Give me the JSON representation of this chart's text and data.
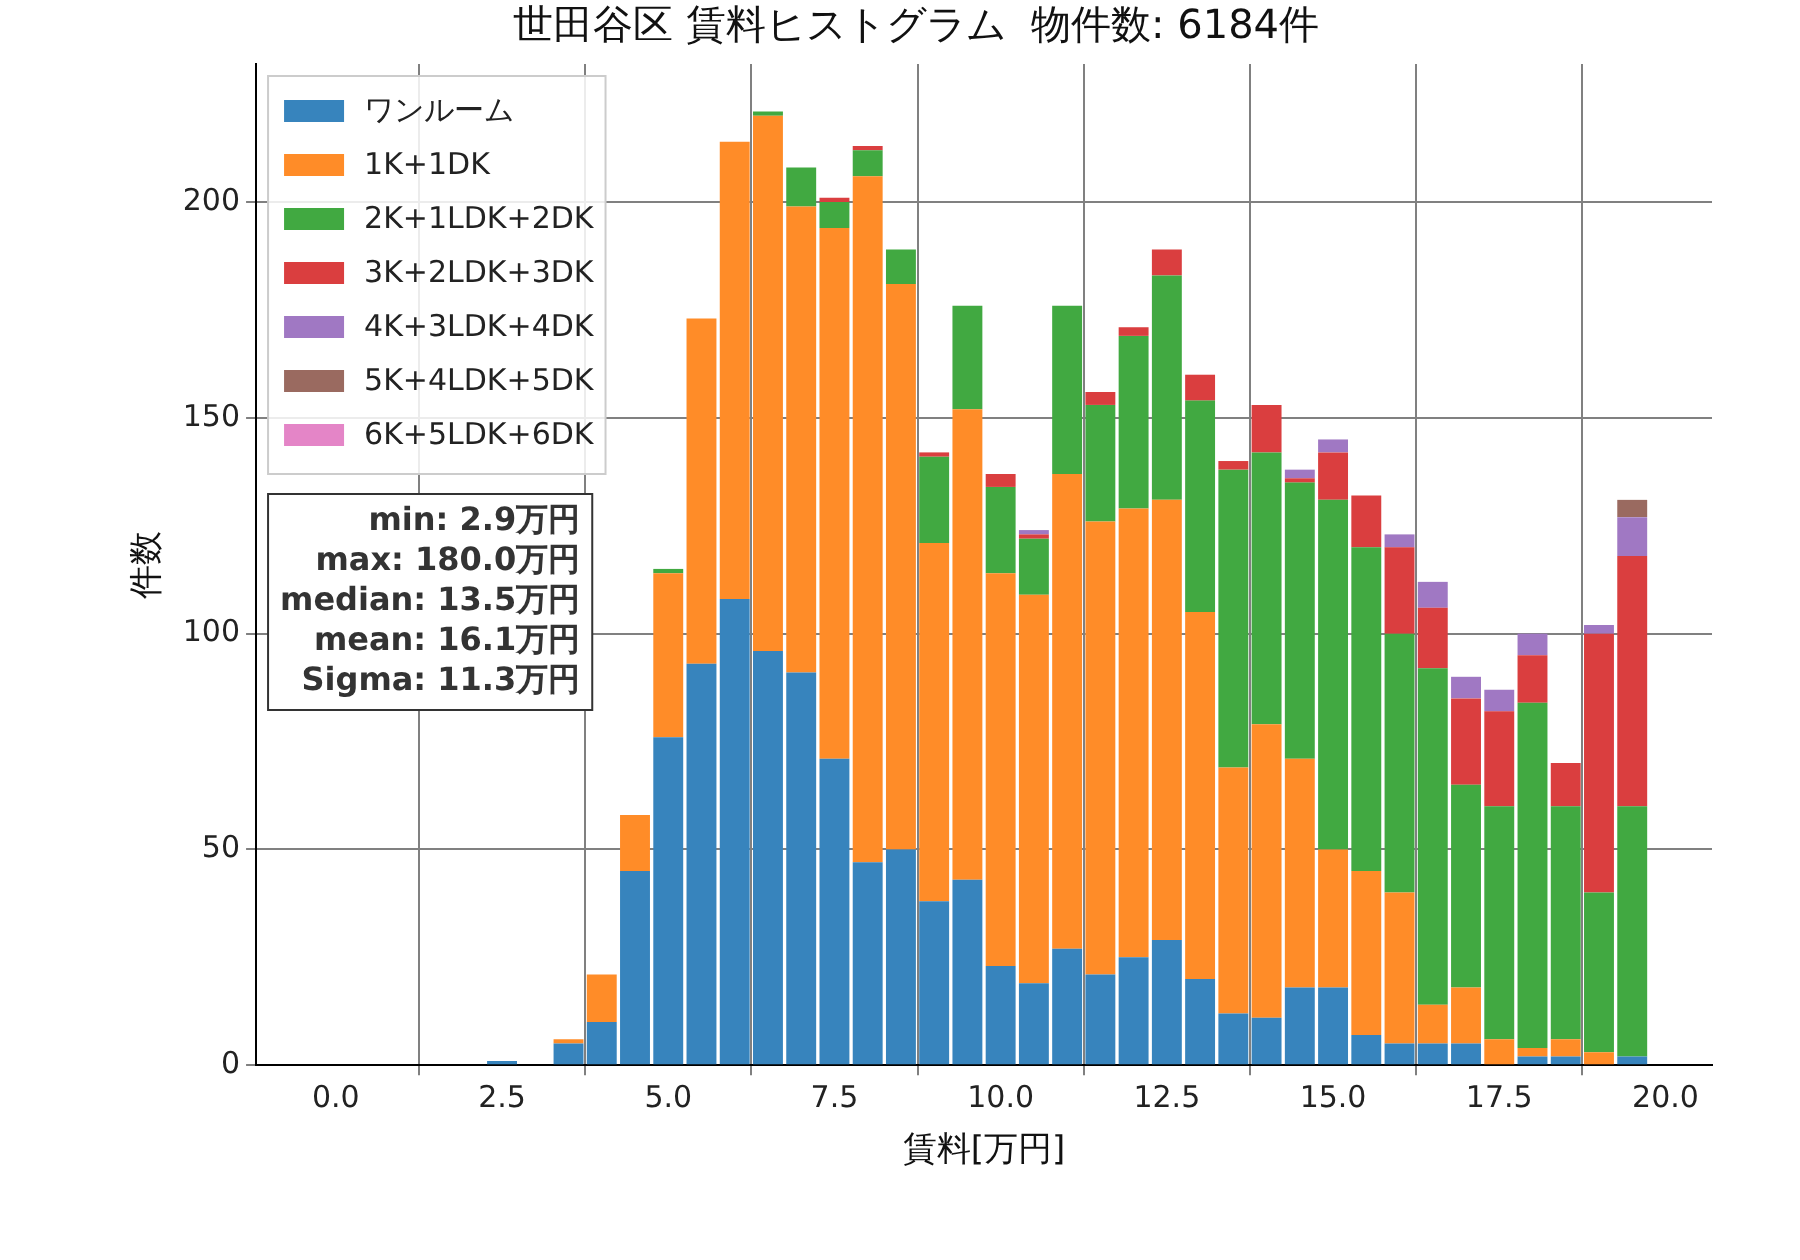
{
  "chart_data": {
    "type": "bar",
    "title": "世田谷区 賃料ヒストグラム  物件数: 6184件",
    "xlabel": "賃料[万円]",
    "ylabel": "件数",
    "x": [
      2.5,
      3.0,
      3.5,
      4.0,
      4.5,
      5.0,
      5.5,
      6.0,
      6.5,
      7.0,
      7.5,
      8.0,
      8.5,
      9.0,
      9.5,
      10.0,
      10.5,
      11.0,
      11.5,
      12.0,
      12.5,
      13.0,
      13.5,
      14.0,
      14.5,
      15.0,
      15.5,
      16.0,
      16.5,
      17.0,
      17.5,
      18.0,
      18.5,
      19.0,
      19.5
    ],
    "stacked": true,
    "series": [
      {
        "name": "ワンルーム",
        "color": "#3784bd",
        "values": [
          1,
          0,
          5,
          10,
          45,
          76,
          93,
          108,
          96,
          91,
          71,
          47,
          50,
          38,
          43,
          23,
          19,
          27,
          21,
          25,
          29,
          20,
          12,
          11,
          18,
          18,
          7,
          5,
          5,
          5,
          0,
          2,
          2,
          0,
          2
        ]
      },
      {
        "name": "1K+1DK",
        "color": "#ff8c28",
        "values": [
          0,
          0,
          1,
          11,
          13,
          38,
          80,
          106,
          124,
          108,
          123,
          159,
          131,
          83,
          109,
          91,
          90,
          110,
          105,
          104,
          102,
          85,
          57,
          68,
          53,
          32,
          38,
          35,
          9,
          13,
          6,
          2,
          4,
          3,
          0
        ]
      },
      {
        "name": "2K+1LDK+2DK",
        "color": "#41a941",
        "values": [
          0,
          0,
          0,
          0,
          0,
          1,
          0,
          0,
          1,
          9,
          6,
          6,
          8,
          20,
          24,
          20,
          13,
          39,
          27,
          40,
          52,
          49,
          69,
          63,
          64,
          81,
          75,
          60,
          78,
          47,
          54,
          80,
          54,
          37,
          58
        ]
      },
      {
        "name": "3K+2LDK+3DK",
        "color": "#da3e3f",
        "values": [
          0,
          0,
          0,
          0,
          0,
          0,
          0,
          0,
          0,
          0,
          1,
          1,
          0,
          1,
          0,
          3,
          1,
          0,
          3,
          2,
          6,
          6,
          2,
          11,
          1,
          11,
          12,
          20,
          14,
          20,
          22,
          11,
          10,
          60,
          58
        ]
      },
      {
        "name": "4K+3LDK+4DK",
        "color": "#a078c3",
        "values": [
          0,
          0,
          0,
          0,
          0,
          0,
          0,
          0,
          0,
          0,
          0,
          0,
          0,
          0,
          0,
          0,
          1,
          0,
          0,
          0,
          0,
          0,
          0,
          0,
          2,
          3,
          0,
          3,
          6,
          5,
          5,
          5,
          0,
          2,
          9
        ]
      },
      {
        "name": "5K+4LDK+5DK",
        "color": "#9a6a60",
        "values": [
          0,
          0,
          0,
          0,
          0,
          0,
          0,
          0,
          0,
          0,
          0,
          0,
          0,
          0,
          0,
          0,
          0,
          0,
          0,
          0,
          0,
          0,
          0,
          0,
          0,
          0,
          0,
          0,
          0,
          0,
          0,
          0,
          0,
          0,
          4
        ]
      },
      {
        "name": "6K+5LDK+6DK",
        "color": "#e485c7",
        "values": [
          0,
          0,
          0,
          0,
          0,
          0,
          0,
          0,
          0,
          0,
          0,
          0,
          0,
          0,
          0,
          0,
          0,
          0,
          0,
          0,
          0,
          0,
          0,
          0,
          0,
          0,
          0,
          0,
          0,
          0,
          0,
          0,
          0,
          0,
          0
        ]
      }
    ],
    "xlim": [
      -1.2,
      20.7
    ],
    "xticks": [
      {
        "value": 0,
        "label": "0.0"
      },
      2.5,
      {
        "value": 5,
        "label": "5.0"
      },
      7.5,
      {
        "value": 10,
        "label": "10.0"
      },
      12.5,
      {
        "value": 15,
        "label": "15.0"
      },
      17.5,
      {
        "value": 20,
        "label": "20.0"
      }
    ],
    "ylim": [
      0,
      232
    ],
    "yticks": [
      0,
      50,
      100,
      150,
      200
    ],
    "grid": true,
    "legend": "top left",
    "annotations": [
      "min: 2.9万円",
      "max: 180.0万円",
      "median: 13.5万円",
      "mean: 16.1万円",
      "Sigma: 11.3万円"
    ]
  }
}
